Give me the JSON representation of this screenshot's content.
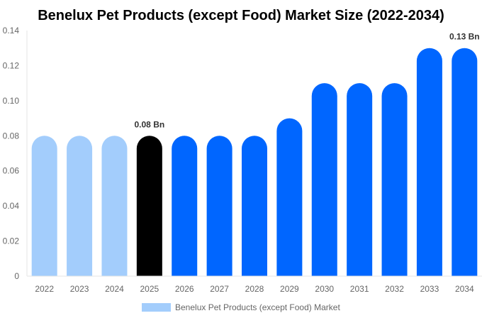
{
  "chart_data": {
    "type": "bar",
    "title": "Benelux Pet Products (except Food) Market Size (2022-2034)",
    "categories": [
      "2022",
      "2023",
      "2024",
      "2025",
      "2026",
      "2027",
      "2028",
      "2029",
      "2030",
      "2031",
      "2032",
      "2033",
      "2034"
    ],
    "series": [
      {
        "name": "Benelux Pet Products (except Food) Market",
        "values": [
          0.08,
          0.08,
          0.08,
          0.08,
          0.08,
          0.08,
          0.08,
          0.09,
          0.11,
          0.11,
          0.11,
          0.13,
          0.13
        ]
      }
    ],
    "ylim": [
      0,
      0.14
    ],
    "yticks": [
      "0",
      "0.02",
      "0.04",
      "0.06",
      "0.08",
      "0.10",
      "0.12",
      "0.14"
    ],
    "xlabel": "",
    "ylabel": "",
    "grid": false,
    "legend_position": "bottom",
    "annotations": [
      {
        "category": "2025",
        "text": "0.08 Bn"
      },
      {
        "category": "2034",
        "text": "0.13 Bn"
      }
    ],
    "colors": {
      "historical": "#a3cdfc",
      "base_year": "#000000",
      "forecast": "#0066ff",
      "legend_swatch": "#a3cdfc"
    },
    "bar_color_groups": [
      "historical",
      "historical",
      "historical",
      "base_year",
      "forecast",
      "forecast",
      "forecast",
      "forecast",
      "forecast",
      "forecast",
      "forecast",
      "forecast",
      "forecast"
    ]
  }
}
